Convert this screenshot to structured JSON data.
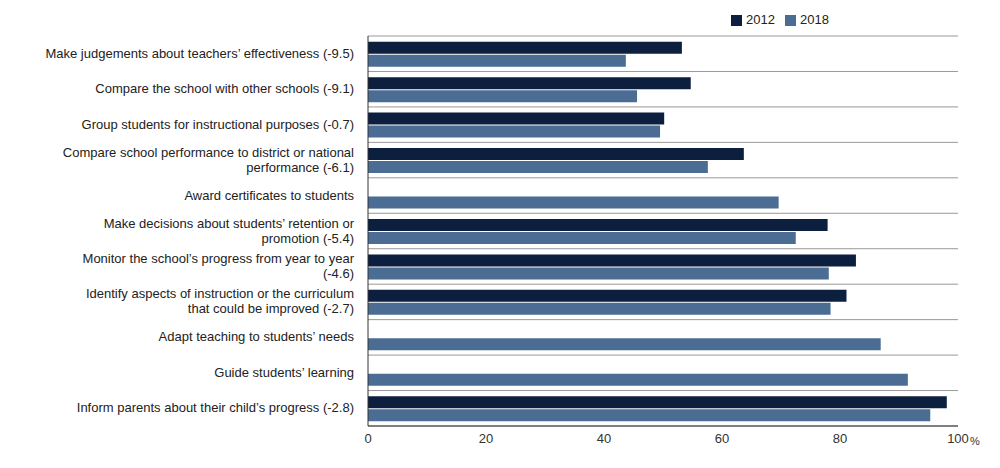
{
  "chart_data": {
    "type": "bar",
    "orientation": "horizontal",
    "legend": "top",
    "categories": [
      "Make judgements about teachers’ effectiveness (-9.5)",
      "Compare the school with other schools (-9.1)",
      "Group students for instructional purposes (-0.7)",
      "Compare school performance to district or national performance (-6.1)",
      "Award certificates to students",
      "Make decisions about students’ retention or promotion (-5.4)",
      "Monitor the school’s progress from year to year (-4.6)",
      "Identify aspects of instruction or the curriculum that could be improved (-2.7)",
      "Adapt teaching to students’ needs",
      "Guide students’ learning",
      "Inform parents about their child’s progress (-2.8)"
    ],
    "series": [
      {
        "name": "2012",
        "color": "#0c1f3f",
        "values": [
          53.2,
          54.7,
          50.2,
          63.7,
          null,
          77.9,
          82.7,
          81.1,
          null,
          null,
          98.1
        ]
      },
      {
        "name": "2018",
        "color": "#4b6d94",
        "values": [
          43.7,
          45.6,
          49.5,
          57.6,
          69.6,
          72.5,
          78.1,
          78.4,
          86.9,
          91.5,
          95.3
        ]
      }
    ],
    "xlim": [
      0,
      100
    ],
    "xticks": [
      0,
      20,
      40,
      60,
      80,
      100
    ],
    "xlabel": "%"
  }
}
